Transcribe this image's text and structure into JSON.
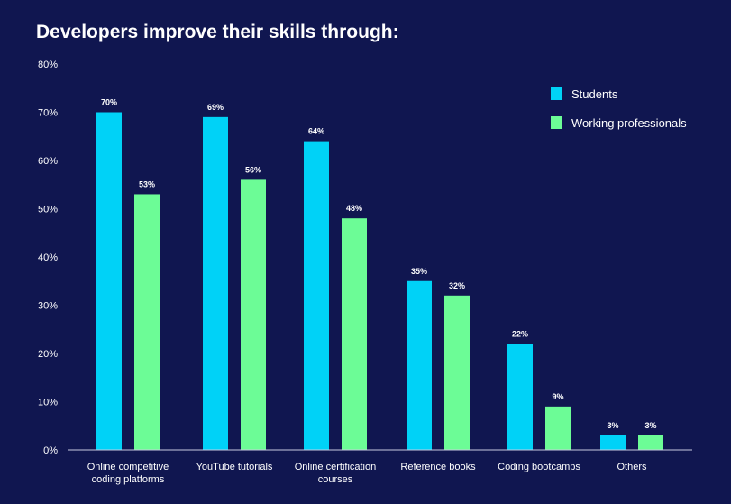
{
  "chart_data": {
    "type": "bar",
    "title": "Developers improve their skills through:",
    "categories": [
      [
        "Online competitive",
        "coding platforms"
      ],
      [
        "YouTube tutorials"
      ],
      [
        "Online certification",
        "courses"
      ],
      [
        "Reference books"
      ],
      [
        "Coding bootcamps"
      ],
      [
        "Others"
      ]
    ],
    "series": [
      {
        "name": "Students",
        "color": "#00d2f7",
        "values": [
          70,
          69,
          64,
          35,
          22,
          3
        ]
      },
      {
        "name": "Working professionals",
        "color": "#6cfc96",
        "values": [
          53,
          56,
          48,
          32,
          9,
          3
        ]
      }
    ],
    "yticks": [
      0,
      10,
      20,
      30,
      40,
      50,
      60,
      70,
      80
    ],
    "ylim": [
      0,
      80
    ],
    "value_suffix": "%",
    "legend_position": "top-right",
    "xlabel": "",
    "ylabel": ""
  }
}
